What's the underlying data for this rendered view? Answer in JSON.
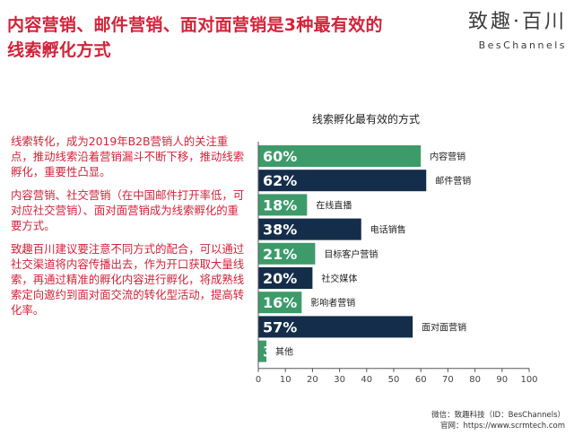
{
  "header": {
    "title_line1": "内容营销、邮件营销、面对面营销是3种最有效的",
    "title_line2": "线索孵化方式",
    "brand_cn": "致趣·百川",
    "brand_en": "BesChannels"
  },
  "bullets": [
    "线索转化，成为2019年B2B营销人的关注重点，推动线索沿着营销漏斗不断下移，推动线索孵化，重要性凸显。",
    "内容营销、社交营销（在中国邮件打开率低，可对应社交营销）、面对面营销成为线索孵化的重要方式。",
    "致趣百川建议要注意不同方式的配合，可以通过社交渠道将内容传播出去，作为开口获取大量线索，再通过精准的孵化内容进行孵化，将成熟线索定向邀约到面对面交流的转化型活动，提高转化率。"
  ],
  "chart_data": {
    "type": "bar",
    "orientation": "horizontal",
    "title": "线索孵化最有效的方式",
    "categories": [
      "内容营销",
      "邮件营销",
      "在线直播",
      "电话销售",
      "目标客户营销",
      "社交媒体",
      "影响者营销",
      "面对面营销",
      "其他"
    ],
    "values": [
      60,
      62,
      18,
      38,
      21,
      20,
      16,
      57,
      3
    ],
    "value_labels": [
      "60%",
      "62%",
      "18%",
      "38%",
      "21%",
      "20%",
      "16%",
      "57%",
      "3%"
    ],
    "xlim": [
      0,
      100
    ],
    "xticks": [
      "0",
      "10",
      "20",
      "30",
      "40",
      "50",
      "60",
      "70",
      "80",
      "90",
      "100"
    ],
    "colors": {
      "green": "#3d9b6a",
      "navy": "#142d4a",
      "pattern": [
        "green",
        "navy",
        "green",
        "navy",
        "green",
        "navy",
        "green",
        "navy",
        "green"
      ]
    }
  },
  "footer": {
    "line1": "微信：致趣科技（ID：BesChannels）",
    "line2": "官网：https://www.scrmtech.com"
  }
}
